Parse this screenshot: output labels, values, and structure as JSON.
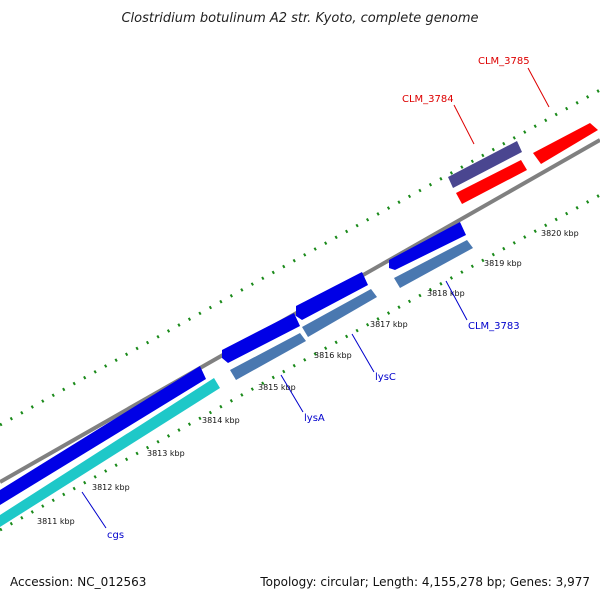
{
  "title": "Clostridium botulinum A2 str. Kyoto, complete genome",
  "footer": {
    "accession": "Accession: NC_012563",
    "summary": "Topology: circular; Length: 4,155,278 bp; Genes: 3,977"
  },
  "ticks": [
    "3811 kbp",
    "3812 kbp",
    "3813 kbp",
    "3814 kbp",
    "3815 kbp",
    "3816 kbp",
    "3817 kbp",
    "3818 kbp",
    "3819 kbp",
    "3820 kbp"
  ],
  "gene_labels": {
    "clm3785": "CLM_3785",
    "clm3784": "CLM_3784",
    "clm3783": "CLM_3783",
    "lysc": "lysC",
    "lysa": "lysA",
    "cgs": "cgs"
  },
  "colors": {
    "backbone": "#808080",
    "gene_blue": "#0000e6",
    "gene_steel": "#4a78b0",
    "gene_cyan": "#1ec8c8",
    "gene_red": "#ff0000",
    "gene_slate": "#4a4690",
    "tick_green": "#1a8a1a",
    "label_red": "#dd0000",
    "label_blue": "#0000cc"
  }
}
